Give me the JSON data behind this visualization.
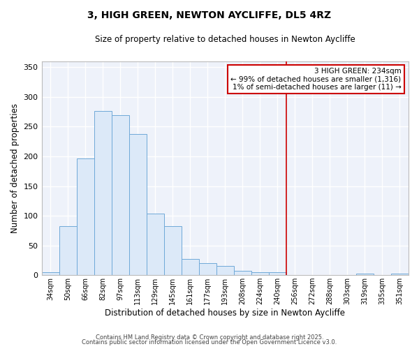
{
  "title": "3, HIGH GREEN, NEWTON AYCLIFFE, DL5 4RZ",
  "subtitle": "Size of property relative to detached houses in Newton Aycliffe",
  "xlabel": "Distribution of detached houses by size in Newton Aycliffe",
  "ylabel": "Number of detached properties",
  "bar_color": "#dce9f8",
  "bar_edge_color": "#6fa8d8",
  "categories": [
    "34sqm",
    "50sqm",
    "66sqm",
    "82sqm",
    "97sqm",
    "113sqm",
    "129sqm",
    "145sqm",
    "161sqm",
    "177sqm",
    "193sqm",
    "208sqm",
    "224sqm",
    "240sqm",
    "256sqm",
    "272sqm",
    "288sqm",
    "303sqm",
    "319sqm",
    "335sqm",
    "351sqm"
  ],
  "values": [
    5,
    83,
    196,
    276,
    269,
    237,
    104,
    83,
    27,
    20,
    16,
    7,
    5,
    5,
    0,
    0,
    0,
    0,
    2,
    0,
    2
  ],
  "ylim": [
    0,
    360
  ],
  "yticks": [
    0,
    50,
    100,
    150,
    200,
    250,
    300,
    350
  ],
  "vline_x_index": 13.5,
  "vline_color": "#cc0000",
  "annotation_text": "3 HIGH GREEN: 234sqm\n← 99% of detached houses are smaller (1,316)\n1% of semi-detached houses are larger (11) →",
  "footer_line1": "Contains HM Land Registry data © Crown copyright and database right 2025.",
  "footer_line2": "Contains public sector information licensed under the Open Government Licence v3.0.",
  "background_color": "#ffffff",
  "plot_bg_color": "#eef2fa",
  "grid_color": "#ffffff"
}
